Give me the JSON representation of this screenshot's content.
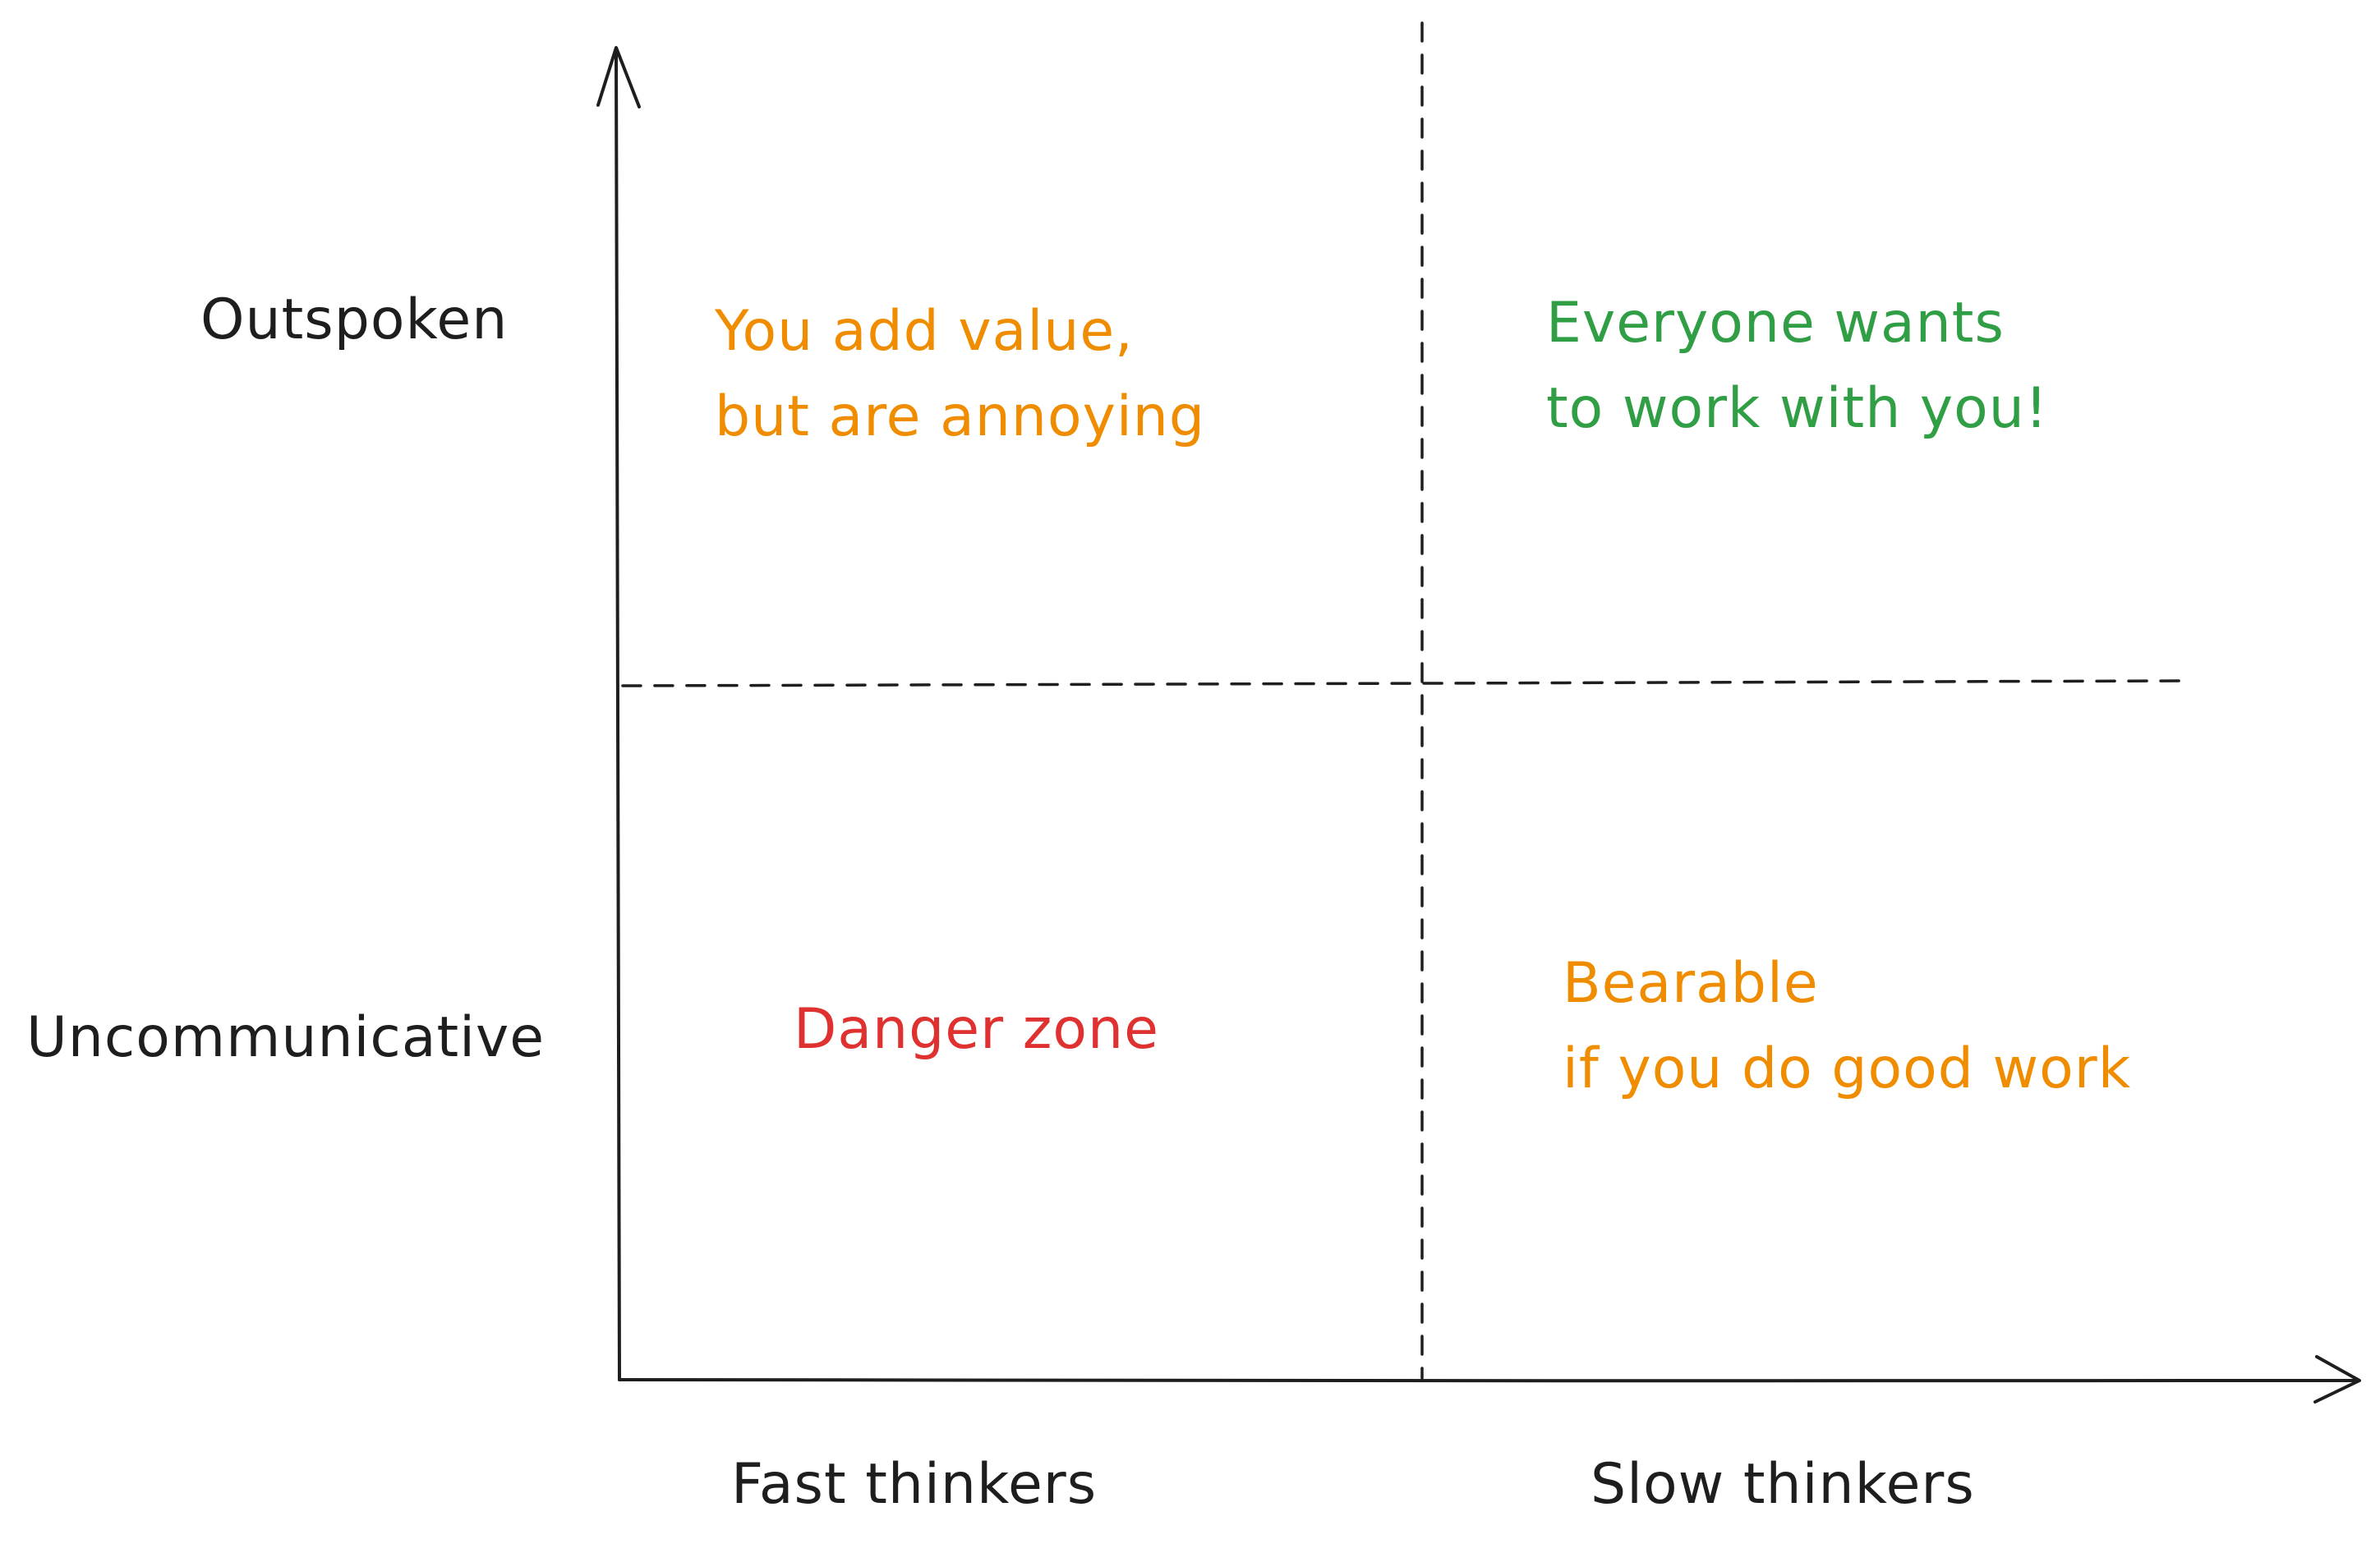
{
  "axes": {
    "y_top_label": "Outspoken",
    "y_bottom_label": "Uncommunicative",
    "x_left_label": "Fast thinkers",
    "x_right_label": "Slow thinkers"
  },
  "quadrants": {
    "top_left": {
      "lines": [
        "You add value,",
        "but are annoying"
      ],
      "color": "#f08c00"
    },
    "top_right": {
      "lines": [
        "Everyone wants",
        "to work with you!"
      ],
      "color": "#2f9e44"
    },
    "bottom_left": {
      "lines": [
        "Danger zone"
      ],
      "color": "#e03131"
    },
    "bottom_right": {
      "lines": [
        "Bearable",
        "if you do good work"
      ],
      "color": "#f08c00"
    }
  },
  "colors": {
    "ink": "#1e1e1e",
    "background": "#ffffff"
  }
}
